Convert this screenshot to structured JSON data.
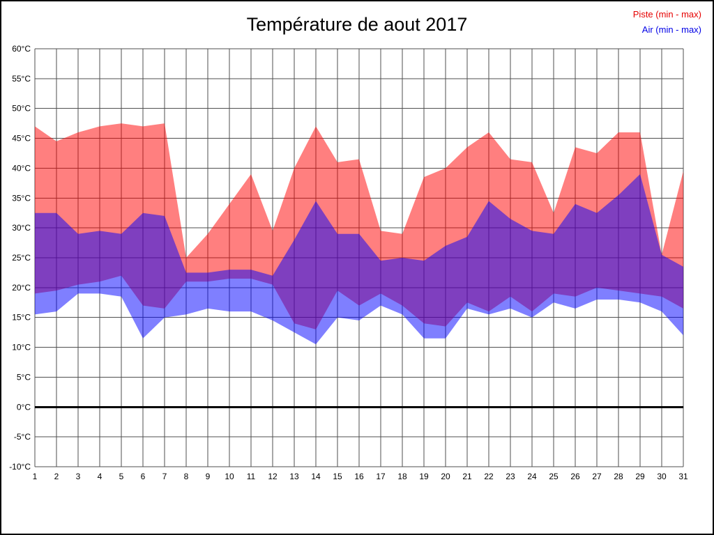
{
  "title": "Température de aout 2017",
  "legend": {
    "items": [
      {
        "label": "Piste (min - max)",
        "color": "#e60000"
      },
      {
        "label": "Air (min - max)",
        "color": "#0000e6"
      }
    ],
    "position": "top-right"
  },
  "chart_data": {
    "type": "area",
    "title": "Température de aout 2017",
    "xlabel": "",
    "ylabel": "",
    "x": [
      1,
      2,
      3,
      4,
      5,
      6,
      7,
      8,
      9,
      10,
      11,
      12,
      13,
      14,
      15,
      16,
      17,
      18,
      19,
      20,
      21,
      22,
      23,
      24,
      25,
      26,
      27,
      28,
      29,
      30,
      31
    ],
    "ylim": [
      -10,
      60
    ],
    "ytick_step": 5,
    "y_unit": "°C",
    "grid": true,
    "zero_line": true,
    "legend_position": "top-right",
    "series": [
      {
        "id": "piste",
        "name": "Piste (min - max)",
        "color": "#ff0000",
        "fill_opacity": 0.5,
        "max": [
          47,
          44.5,
          46,
          47,
          47.5,
          47,
          47.5,
          25,
          29,
          34,
          39,
          29.5,
          40,
          47,
          41,
          41.5,
          29.5,
          29,
          38.5,
          40,
          43.5,
          46,
          41.5,
          41,
          32.5,
          43.5,
          42.5,
          46,
          46,
          25.5,
          39.5
        ],
        "min": [
          19,
          19.5,
          20.5,
          21,
          22,
          17,
          16.5,
          21,
          21,
          21.5,
          21.5,
          20.5,
          14,
          13,
          19.5,
          17,
          19,
          17,
          14,
          13.5,
          17.5,
          16,
          18.5,
          16,
          19,
          18.5,
          20,
          19.5,
          19,
          18.5,
          16.5
        ]
      },
      {
        "id": "air",
        "name": "Air (min - max)",
        "color": "#0000ff",
        "fill_opacity": 0.5,
        "max": [
          32.5,
          32.5,
          29,
          29.5,
          29,
          32.5,
          32,
          22.5,
          22.5,
          23,
          23,
          22,
          28,
          34.5,
          29,
          29,
          24.5,
          25,
          24.5,
          27,
          28.5,
          34.5,
          31.5,
          29.5,
          29,
          34,
          32.5,
          35.5,
          39,
          25.5,
          23.5
        ],
        "min": [
          15.5,
          16,
          19,
          19,
          18.5,
          11.5,
          15,
          15.5,
          16.5,
          16,
          16,
          14.5,
          12.5,
          10.5,
          15,
          14.5,
          17,
          15.5,
          11.5,
          11.5,
          16.5,
          15.5,
          16.5,
          15,
          17.5,
          16.5,
          18,
          18,
          17.5,
          16,
          12
        ]
      }
    ]
  }
}
